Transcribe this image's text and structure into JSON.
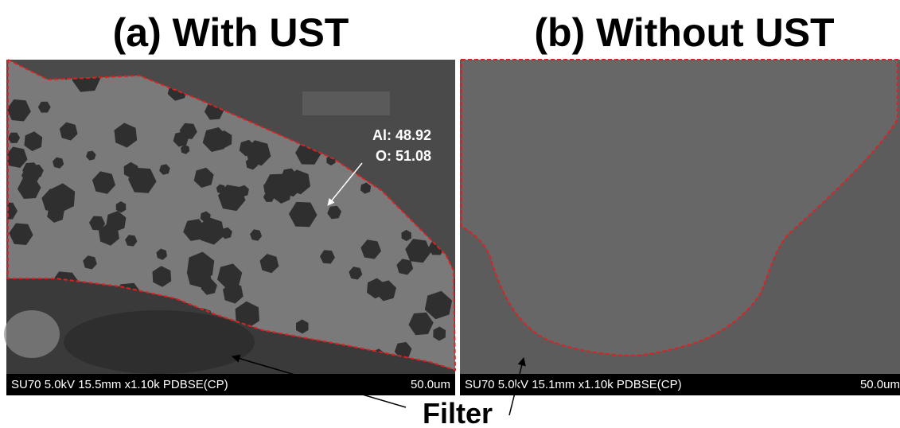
{
  "panels": [
    {
      "title": "(a) With UST",
      "info": "SU70 5.0kV 15.5mm x1.10k PDBSE(CP)",
      "scale": "50.0um",
      "annotation": [
        "Al: 48.92",
        "O: 51.08"
      ]
    },
    {
      "title": "(b) Without UST",
      "info": "SU70 5.0kV 15.1mm x1.10k PDBSE(CP)",
      "scale": "50.0um"
    }
  ],
  "label": "Filter"
}
